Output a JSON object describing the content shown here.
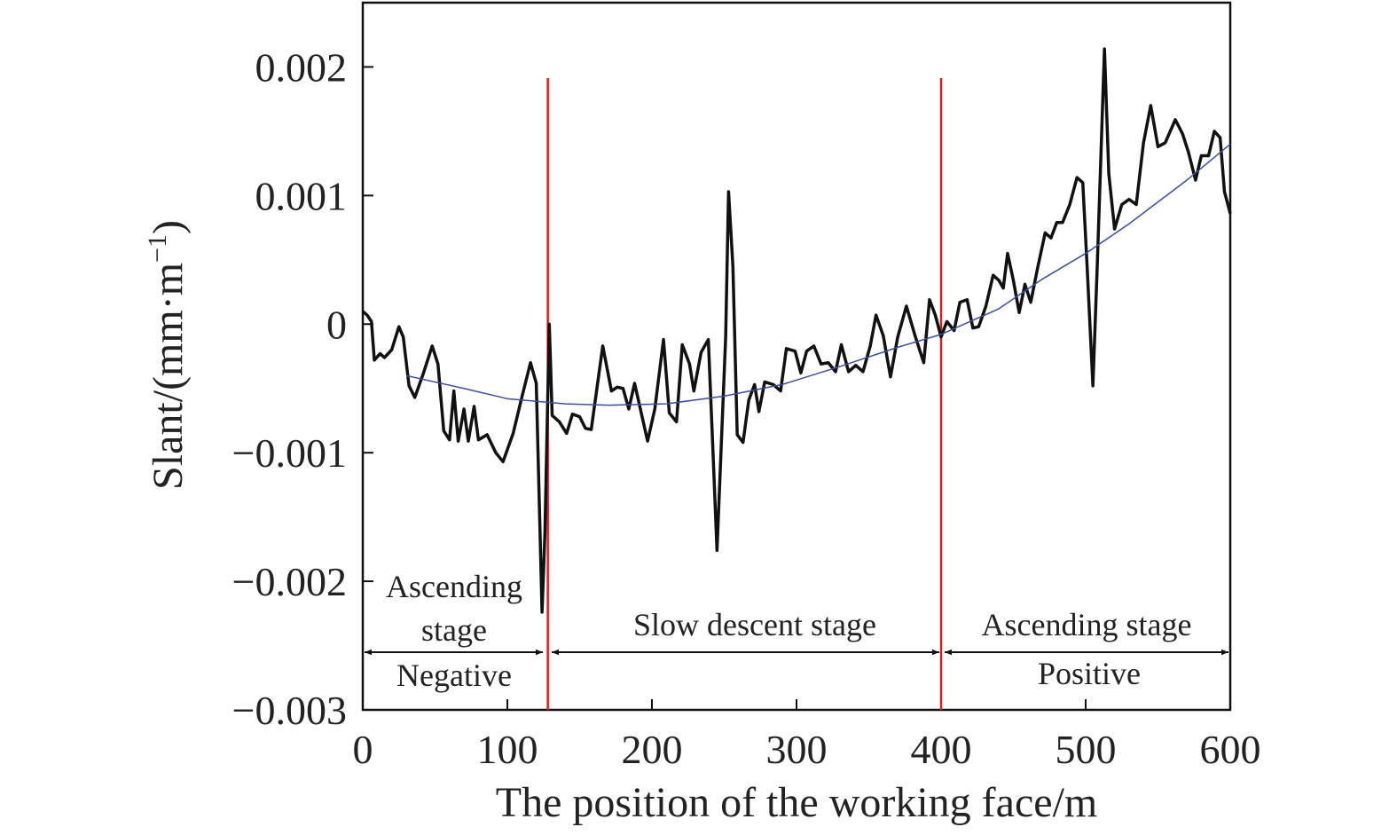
{
  "chart_data": {
    "type": "line",
    "xlabel": "The position of the working face/m",
    "ylabel": "Slant/(mm·m",
    "ylabel_sup": "−1",
    "ylabel_end": ")",
    "xlim": [
      0,
      600
    ],
    "ylim": [
      -0.003,
      0.0025
    ],
    "xticks": [
      0,
      100,
      200,
      300,
      400,
      500,
      600
    ],
    "yticks": [
      {
        "value": -0.003,
        "label": "−0.003"
      },
      {
        "value": -0.002,
        "label": "−0.002"
      },
      {
        "value": -0.001,
        "label": "−0.001"
      },
      0,
      0.001,
      0.002
    ],
    "series": [
      {
        "color": "#111111",
        "x": [
          0,
          3,
          6,
          8,
          12,
          15,
          20,
          25,
          28,
          32,
          36,
          42,
          48,
          52,
          56,
          60,
          63,
          66,
          70,
          73,
          77,
          80,
          86,
          92,
          97,
          104,
          110,
          116,
          120,
          124,
          126,
          129,
          131,
          136,
          141,
          145,
          150,
          154,
          158,
          166,
          172,
          176,
          180,
          184,
          188,
          193,
          197,
          202,
          208,
          212,
          217,
          221,
          226,
          229,
          234,
          239,
          242,
          245,
          251,
          253,
          256,
          259,
          263,
          267,
          271,
          274,
          278,
          284,
          289,
          293,
          299,
          303,
          307,
          312,
          317,
          322,
          327,
          331,
          336,
          341,
          346,
          351,
          355,
          360,
          365,
          370,
          376,
          382,
          388,
          392,
          396,
          400,
          404,
          409,
          413,
          418,
          422,
          426,
          431,
          436,
          440,
          443,
          446,
          450,
          454,
          458,
          462,
          467,
          472,
          476,
          480,
          484,
          489,
          494,
          498,
          501,
          505,
          508,
          513,
          516,
          520,
          525,
          530,
          535,
          540,
          545,
          550,
          555,
          562,
          567,
          571,
          576,
          580,
          585,
          589,
          593,
          596,
          600
        ],
        "values": [
          0.0001,
          7e-05,
          2e-05,
          -0.00028,
          -0.00023,
          -0.00026,
          -0.0002,
          -2e-05,
          -0.0001,
          -0.00048,
          -0.00057,
          -0.00038,
          -0.00017,
          -0.00031,
          -0.00083,
          -0.0009,
          -0.00052,
          -0.00091,
          -0.00066,
          -0.00091,
          -0.00064,
          -0.0009,
          -0.00086,
          -0.001,
          -0.00107,
          -0.00085,
          -0.00057,
          -0.0003,
          -0.00046,
          -0.00224,
          -0.00162,
          0,
          -0.00071,
          -0.00076,
          -0.00085,
          -0.0007,
          -0.00072,
          -0.00081,
          -0.00082,
          -0.00017,
          -0.00052,
          -0.00049,
          -0.0005,
          -0.00066,
          -0.00046,
          -0.00071,
          -0.00091,
          -0.00066,
          -0.00012,
          -0.00069,
          -0.00076,
          -0.00016,
          -0.00031,
          -0.00052,
          -0.00022,
          -0.00012,
          -0.00093,
          -0.00176,
          -0.0001,
          0.00103,
          0.00045,
          -0.00086,
          -0.00092,
          -0.00059,
          -0.00047,
          -0.00068,
          -0.00045,
          -0.00047,
          -0.00052,
          -0.00019,
          -0.00021,
          -0.00038,
          -0.00021,
          -0.00017,
          -0.00031,
          -0.0003,
          -0.00037,
          -0.00016,
          -0.00037,
          -0.00032,
          -0.00037,
          -0.00017,
          7e-05,
          -9e-05,
          -0.00041,
          -0.0001,
          0.00014,
          -9e-05,
          -0.0003,
          0.00019,
          7e-05,
          -0.0001,
          2e-05,
          -5e-05,
          0.00017,
          0.00019,
          -3e-05,
          -2e-05,
          0.00014,
          0.00038,
          0.00034,
          0.00028,
          0.00055,
          0.00034,
          9e-05,
          0.00031,
          0.00017,
          0.00045,
          0.00071,
          0.00067,
          0.00079,
          0.00079,
          0.00093,
          0.00114,
          0.0011,
          0.00045,
          -0.00048,
          0.00045,
          0.00214,
          0.00117,
          0.00074,
          0.00093,
          0.00097,
          0.00093,
          0.00141,
          0.0017,
          0.00138,
          0.00141,
          0.00159,
          0.00148,
          0.00134,
          0.00112,
          0.00131,
          0.00131,
          0.0015,
          0.00145,
          0.00103,
          0.00086
        ]
      },
      {
        "color": "#3a4fa0",
        "x": [
          30,
          70,
          100,
          140,
          170,
          210,
          250,
          290,
          330,
          370,
          400,
          440,
          470,
          500,
          530,
          570,
          600
        ],
        "values": [
          -0.0004,
          -0.0005,
          -0.00058,
          -0.00062,
          -0.00063,
          -0.00062,
          -0.00056,
          -0.00047,
          -0.00033,
          -0.00018,
          -8e-05,
          0.00012,
          0.00035,
          0.00055,
          0.00078,
          0.00112,
          0.0014
        ]
      }
    ],
    "vlines": {
      "color": "#d42020",
      "x": [
        128,
        400
      ]
    },
    "annotations": [
      "Ascending",
      "stage",
      "Negative",
      "Slow descent stage",
      "Ascending stage",
      "Positive"
    ]
  }
}
